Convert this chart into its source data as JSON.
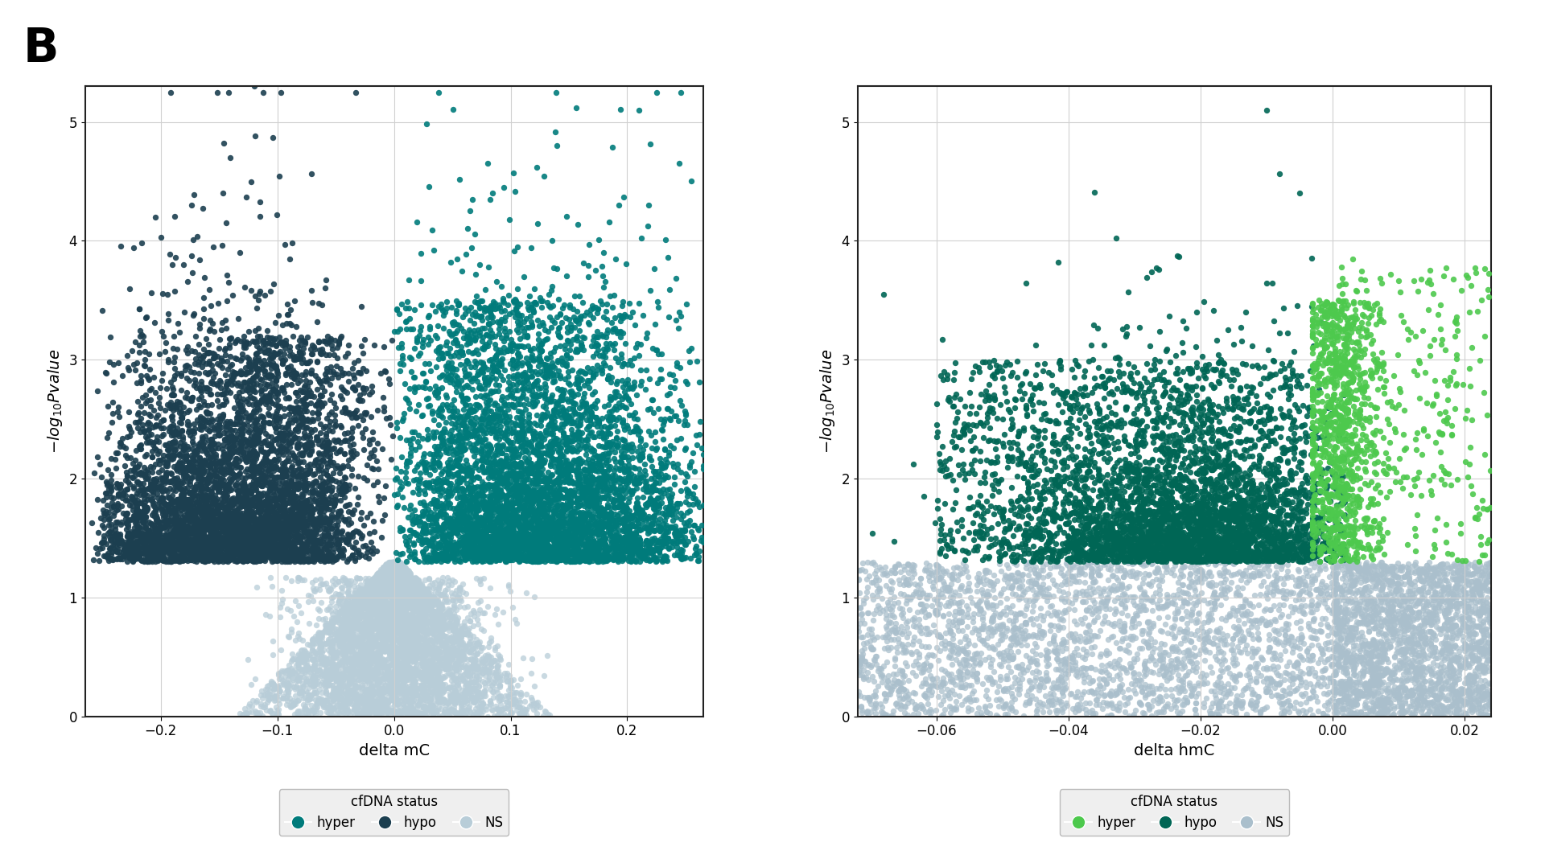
{
  "plot1": {
    "xlabel": "delta mC",
    "ylabel": "$-log_{10}Pvalue$",
    "xlim": [
      -0.265,
      0.265
    ],
    "ylim": [
      0,
      5.3
    ],
    "xticks": [
      -0.2,
      -0.1,
      0.0,
      0.1,
      0.2
    ],
    "yticks": [
      0,
      1,
      2,
      3,
      4,
      5
    ],
    "color_hyper": "#007b7b",
    "color_hypo": "#1c3f50",
    "color_ns": "#b8cdd8",
    "legend_title": "cfDNA status"
  },
  "plot2": {
    "xlabel": "delta hmC",
    "ylabel": "$-log_{10}Pvalue$",
    "xlim": [
      -0.072,
      0.024
    ],
    "ylim": [
      0,
      5.3
    ],
    "xticks": [
      -0.06,
      -0.04,
      -0.02,
      0.0,
      0.02
    ],
    "yticks": [
      0,
      1,
      2,
      3,
      4,
      5
    ],
    "color_hyper": "#4dc94d",
    "color_hypo": "#006655",
    "color_ns": "#aabfcc",
    "legend_title": "cfDNA status"
  },
  "figure_label": "B",
  "background_color": "#ffffff",
  "grid_color": "#d0d0d0",
  "significance_threshold": 1.3
}
